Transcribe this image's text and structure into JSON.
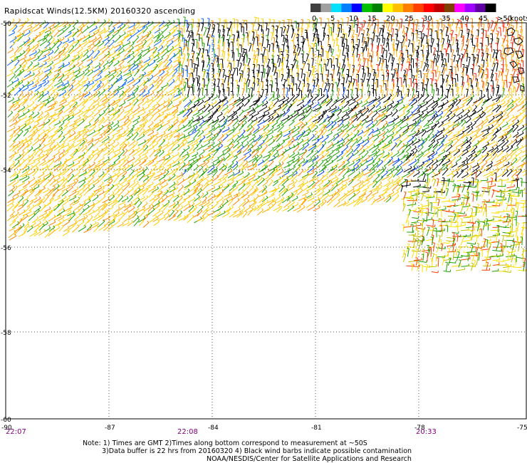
{
  "title": "Rapidscat Winds(12.5KM) 20160320 ascending",
  "legend": {
    "unit": "knots",
    "ticks": [
      "0",
      "5",
      "10",
      "15",
      "20",
      "25",
      "30",
      "35",
      "40",
      "45",
      ">50"
    ],
    "colors": [
      "#404040",
      "#a0a0a0",
      "#00e0ff",
      "#0080ff",
      "#0000ff",
      "#00c000",
      "#008000",
      "#ffff00",
      "#ffc000",
      "#ff8000",
      "#ff4000",
      "#ff0000",
      "#c00000",
      "#804000",
      "#ff00ff",
      "#a000ff",
      "#6000a0",
      "#000000"
    ]
  },
  "map": {
    "lat_labels": [
      "-50",
      "-52",
      "-54",
      "-56",
      "-58",
      "-60"
    ],
    "lon_labels": [
      "-90",
      "-87",
      "-84",
      "-81",
      "-78",
      "-75"
    ],
    "time_labels": [
      "22:07",
      "22:08",
      "20:33"
    ]
  },
  "notes": {
    "line1": "Note: 1) Times are GMT 2)Times along bottom correspond to measurement at ~50S",
    "line2": "3)Data buffer is 22 hrs from 20160320 4) Black wind barbs indicate possible contamination",
    "line3": "NOAA/NESDIS/Center for Satellite Applications and Research"
  }
}
